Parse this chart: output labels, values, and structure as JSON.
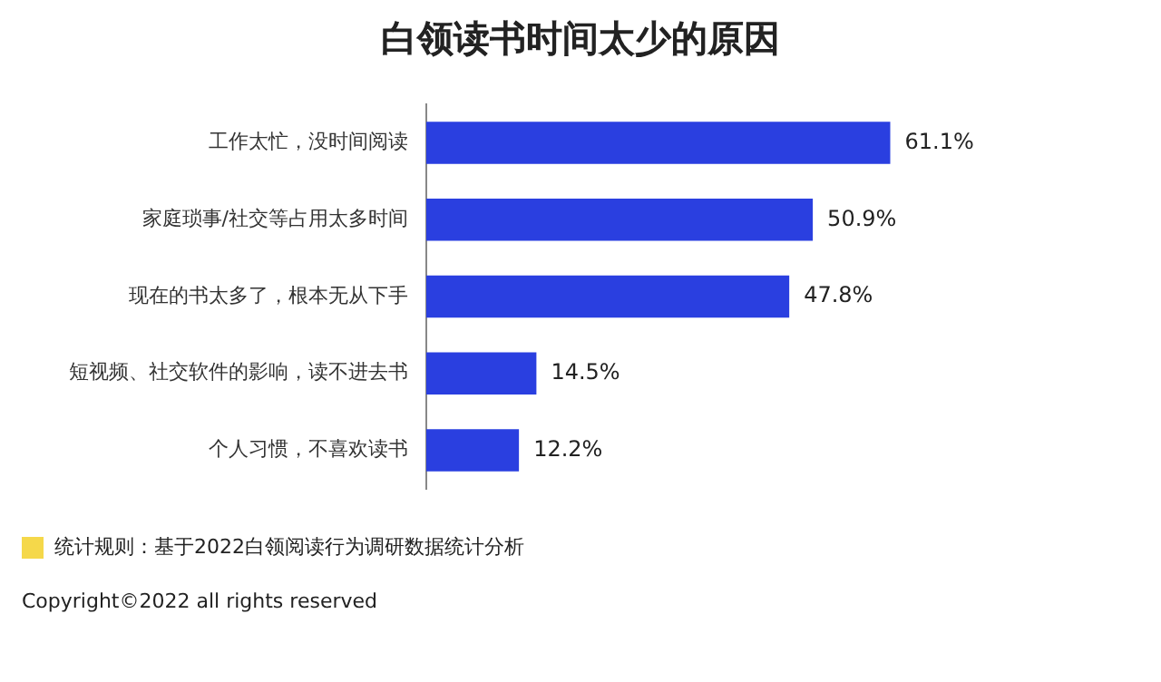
{
  "chart_data": {
    "type": "bar",
    "orientation": "horizontal",
    "title": "白领读书时间太少的原因",
    "categories": [
      "工作太忙，没时间阅读",
      "家庭琐事/社交等占用太多时间",
      "现在的书太多了，根本无从下手",
      "短视频、社交软件的影响，读不进去书",
      "个人习惯，不喜欢读书"
    ],
    "values": [
      61.1,
      50.9,
      47.8,
      14.5,
      12.2
    ],
    "color": "#2a3fe0",
    "value_labels": [
      "61.1%",
      "50.9%",
      "47.8%",
      "14.5%",
      "12.2%"
    ],
    "grid": false,
    "legend": false,
    "annotations": [
      "统计规则：基于2022白领阅读行为调研数据统计分析",
      "Copyright©2022 all rights reserved"
    ]
  }
}
